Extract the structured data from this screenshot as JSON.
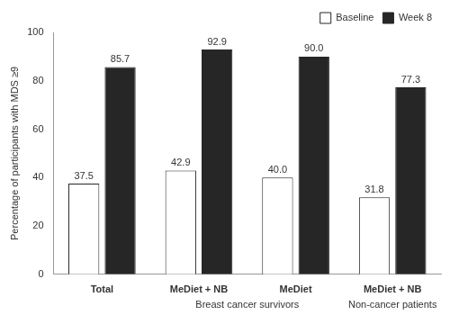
{
  "chart_data": {
    "type": "bar",
    "y_label": "Percentage of participants with MDS ≥9",
    "categories": [
      "Total",
      "MeDiet + NB",
      "MeDiet",
      "MeDiet + NB"
    ],
    "category_groups": [
      null,
      "Breast cancer survivors",
      "Breast cancer survivors",
      "Non-cancer patients"
    ],
    "series": [
      {
        "name": "Baseline",
        "color": "#ffffff",
        "values": [
          37.5,
          42.9,
          40,
          31.8
        ],
        "value_labels": [
          "37.5",
          "42.9",
          "40.0",
          "31.8"
        ]
      },
      {
        "name": "Week 8",
        "color": "#262626",
        "values": [
          85.7,
          92.9,
          90,
          77.3
        ],
        "value_labels": [
          "85.7",
          "92.9",
          "90.0",
          "77.3"
        ]
      }
    ],
    "ylim": [
      0,
      100
    ],
    "yticks": [
      0,
      20,
      40,
      60,
      80,
      100
    ],
    "grid": false,
    "legend": "top-right",
    "data_labels": true
  }
}
